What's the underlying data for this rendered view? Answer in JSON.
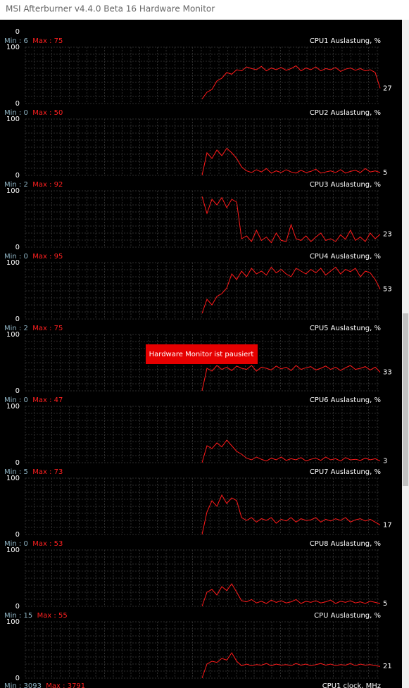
{
  "window": {
    "title": "MSI Afterburner v4.4.0 Beta 16 Hardware Monitor"
  },
  "overlay": {
    "text": "Hardware Monitor ist pausiert"
  },
  "partial_top": {
    "ymin": 0
  },
  "panels": [
    {
      "name": "CPU1 Auslastung, %",
      "min_label": "Min : ",
      "min": 6,
      "max_label": "Max : ",
      "max": 75,
      "ylim": [
        0,
        100
      ],
      "current": 27,
      "values": [
        8,
        20,
        25,
        40,
        45,
        55,
        52,
        60,
        58,
        65,
        62,
        60,
        66,
        58,
        63,
        60,
        64,
        59,
        62,
        67,
        58,
        63,
        60,
        65,
        58,
        62,
        60,
        64,
        57,
        61,
        63,
        59,
        62,
        58,
        60,
        55,
        27
      ]
    },
    {
      "name": "CPU2 Auslastung, %",
      "min_label": "Min : ",
      "min": 0,
      "max_label": "Max : ",
      "max": 50,
      "ylim": [
        0,
        100
      ],
      "current": 5,
      "values": [
        0,
        40,
        30,
        45,
        35,
        48,
        40,
        30,
        15,
        8,
        5,
        10,
        6,
        12,
        4,
        8,
        5,
        10,
        6,
        4,
        9,
        5,
        7,
        11,
        4,
        6,
        8,
        5,
        10,
        4,
        7,
        9,
        5,
        12,
        6,
        8,
        5
      ]
    },
    {
      "name": "CPU3 Auslastung, %",
      "min_label": "Min : ",
      "min": 2,
      "max_label": "Max : ",
      "max": 92,
      "ylim": [
        0,
        100
      ],
      "current": 23,
      "values": [
        90,
        60,
        85,
        75,
        88,
        70,
        85,
        80,
        15,
        20,
        10,
        30,
        12,
        18,
        8,
        25,
        12,
        10,
        40,
        15,
        12,
        20,
        10,
        18,
        25,
        12,
        15,
        10,
        22,
        14,
        30,
        12,
        18,
        10,
        25,
        15,
        23
      ]
    },
    {
      "name": "CPU4 Auslastung, %",
      "min_label": "Min : ",
      "min": 0,
      "max_label": "Max : ",
      "max": 95,
      "ylim": [
        0,
        100
      ],
      "current": 53,
      "values": [
        10,
        35,
        25,
        40,
        45,
        55,
        80,
        70,
        85,
        75,
        90,
        80,
        85,
        78,
        92,
        82,
        88,
        80,
        75,
        90,
        85,
        80,
        88,
        82,
        90,
        78,
        85,
        92,
        80,
        88,
        84,
        90,
        75,
        85,
        82,
        70,
        53
      ]
    },
    {
      "name": "CPU5 Auslastung, %",
      "min_label": "Min : ",
      "min": 2,
      "max_label": "Max : ",
      "max": 75,
      "ylim": [
        0,
        100
      ],
      "current": 33,
      "values": [
        0,
        40,
        35,
        45,
        38,
        42,
        36,
        44,
        40,
        38,
        45,
        35,
        42,
        40,
        37,
        44,
        39,
        42,
        36,
        45,
        38,
        41,
        43,
        37,
        40,
        44,
        38,
        42,
        36,
        41,
        45,
        38,
        40,
        43,
        37,
        42,
        33
      ]
    },
    {
      "name": "CPU6 Auslastung, %",
      "min_label": "Min : ",
      "min": 0,
      "max_label": "Max : ",
      "max": 47,
      "ylim": [
        0,
        100
      ],
      "current": 3,
      "values": [
        0,
        30,
        25,
        35,
        28,
        40,
        30,
        20,
        15,
        8,
        5,
        10,
        6,
        3,
        8,
        5,
        10,
        4,
        7,
        5,
        9,
        3,
        6,
        8,
        4,
        10,
        5,
        7,
        3,
        9,
        5,
        6,
        4,
        8,
        5,
        7,
        3
      ]
    },
    {
      "name": "CPU7 Auslastung, %",
      "min_label": "Min : ",
      "min": 5,
      "max_label": "Max : ",
      "max": 73,
      "ylim": [
        0,
        100
      ],
      "current": 17,
      "values": [
        0,
        40,
        60,
        50,
        70,
        55,
        65,
        60,
        30,
        25,
        30,
        22,
        28,
        25,
        30,
        20,
        27,
        24,
        30,
        22,
        28,
        25,
        26,
        30,
        22,
        27,
        24,
        28,
        25,
        30,
        22,
        26,
        28,
        24,
        27,
        22,
        17
      ]
    },
    {
      "name": "CPU8 Auslastung, %",
      "min_label": "Min : ",
      "min": 0,
      "max_label": "Max : ",
      "max": 53,
      "ylim": [
        0,
        100
      ],
      "current": 5,
      "values": [
        0,
        25,
        30,
        20,
        35,
        28,
        40,
        25,
        10,
        8,
        12,
        6,
        9,
        5,
        11,
        7,
        10,
        6,
        8,
        12,
        5,
        9,
        7,
        10,
        6,
        8,
        11,
        5,
        9,
        7,
        10,
        6,
        8,
        5,
        9,
        7,
        5
      ]
    },
    {
      "name": "CPU Auslastung, %",
      "min_label": "Min : ",
      "min": 15,
      "max_label": "Max : ",
      "max": 55,
      "ylim": [
        0,
        100
      ],
      "current": 21,
      "values": [
        0,
        25,
        30,
        28,
        35,
        32,
        45,
        30,
        22,
        25,
        22,
        24,
        23,
        26,
        22,
        25,
        23,
        24,
        22,
        26,
        23,
        25,
        22,
        24,
        26,
        23,
        25,
        22,
        24,
        23,
        26,
        22,
        25,
        23,
        24,
        22,
        21
      ]
    }
  ],
  "partial_bottom": {
    "name": "CPU1 clock, MHz",
    "min_label": "Min : ",
    "min": 3093,
    "max_label": "Max : ",
    "max": 3791
  }
}
